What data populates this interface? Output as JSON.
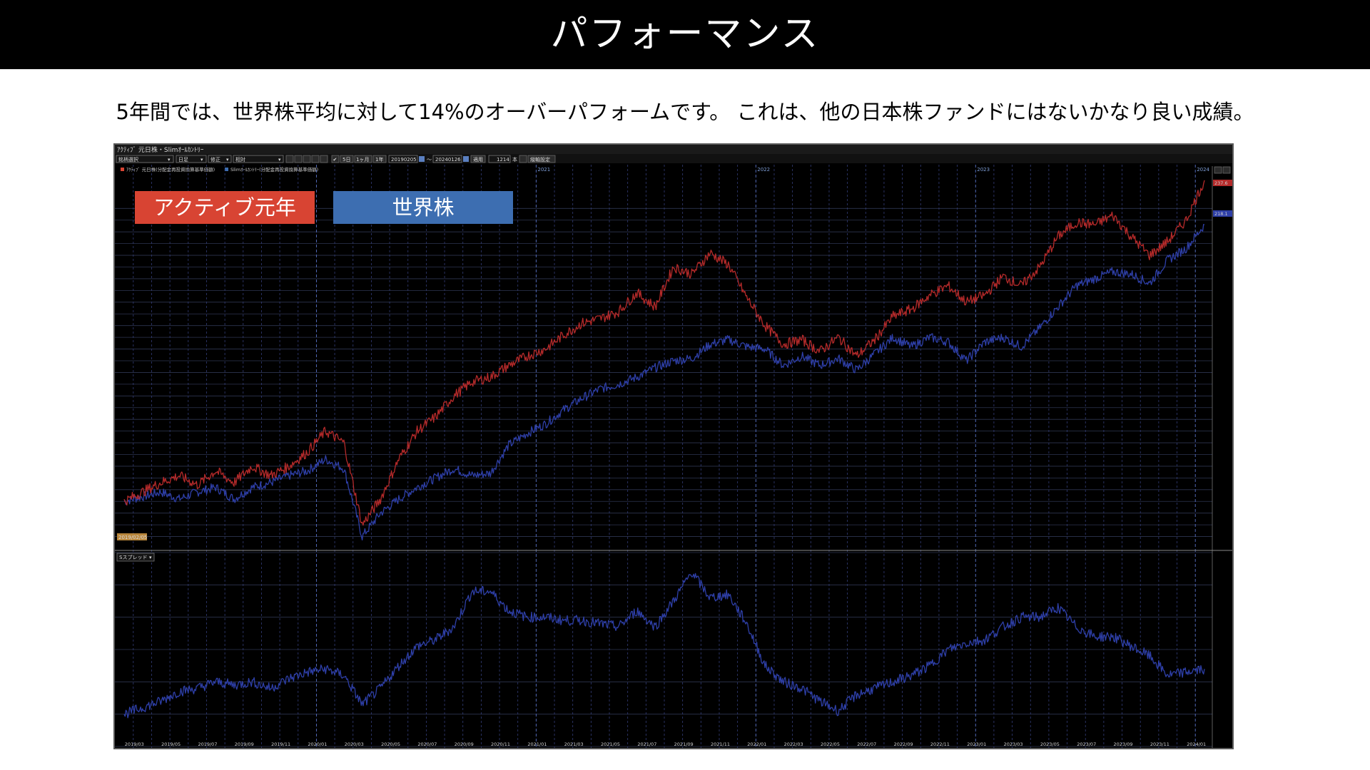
{
  "header": {
    "title": "パフォーマンス"
  },
  "subtitle": "5年間では、世界株平均に対して14%のオーバーパフォームです。 これは、他の日本株ファンドにはないかなり良い成績。",
  "labels": {
    "active": "アクティブ元年",
    "world": "世界株"
  },
  "colors": {
    "active": "#d84433",
    "world": "#3d6eb1",
    "series_red": "#b52a2a",
    "series_blue": "#2e3fa8"
  },
  "app": {
    "window_title": "ｱｸﾃｨﾌﾞ 元日株・Slimｵｰﾙｶﾝﾄﾘｰ",
    "toolbar": {
      "dropdown1": "銘柄選択",
      "dropdown2": "日足",
      "dropdown3": "修正",
      "dropdown4": "相対",
      "btn_5d": "5日",
      "btn_1m": "1ヶ月",
      "btn_1y": "1年",
      "date_from": "20190205",
      "tilde": "〜",
      "date_to": "20240126",
      "apply": "適用",
      "count": "1214",
      "count_unit": "本",
      "axis_settings": "縦軸設定"
    },
    "legend": {
      "item1": "ｱｸﾃｨﾌﾞ 元日株(分配金再投資換算基準価額)",
      "item2": "Slimｵｰﾙｶﾝﾄﾘｰ(分配金再投資換算基準価額)"
    },
    "start_date_badge": "2019/02/05",
    "indicator_label": "Sスプレッド",
    "last_value_red": "237.6",
    "last_value_blue": "218.1"
  },
  "chart_data": [
    {
      "type": "line",
      "title": "",
      "years_marked": [
        "2021",
        "2022",
        "2023",
        "2024"
      ],
      "x": [
        "2019/03",
        "2019/05",
        "2019/07",
        "2019/09",
        "2019/11",
        "2020/01",
        "2020/03",
        "2020/05",
        "2020/07",
        "2020/09",
        "2020/11",
        "2021/01",
        "2021/03",
        "2021/05",
        "2021/07",
        "2021/09",
        "2021/11",
        "2022/01",
        "2022/03",
        "2022/05",
        "2022/07",
        "2022/09",
        "2022/11",
        "2023/01",
        "2023/03",
        "2023/05",
        "2023/07",
        "2023/09",
        "2023/11",
        "2024/01"
      ],
      "ylim": [
        80,
        240
      ],
      "yticks": [
        85,
        90,
        95,
        100,
        105,
        110,
        115,
        120,
        125,
        130,
        135,
        140,
        145,
        150,
        155,
        160,
        165,
        170,
        175,
        180,
        185,
        190,
        195,
        200,
        205,
        210,
        215,
        220,
        225
      ],
      "series": [
        {
          "name": "ｱｸﾃｨﾌﾞ 元日株(分配金再投資換算基準価額)",
          "values": [
            {
              "x": "2019/02",
              "y": 100
            },
            {
              "x": "2019/03",
              "y": 104
            },
            {
              "x": "2019/04",
              "y": 108
            },
            {
              "x": "2019/05",
              "y": 111
            },
            {
              "x": "2019/06",
              "y": 107
            },
            {
              "x": "2019/07",
              "y": 113
            },
            {
              "x": "2019/08",
              "y": 108
            },
            {
              "x": "2019/09",
              "y": 115
            },
            {
              "x": "2019/10",
              "y": 111
            },
            {
              "x": "2019/11",
              "y": 115
            },
            {
              "x": "2019/12",
              "y": 121
            },
            {
              "x": "2020/01",
              "y": 130
            },
            {
              "x": "2020/02",
              "y": 125
            },
            {
              "x": "2020/03",
              "y": 90
            },
            {
              "x": "2020/04",
              "y": 101
            },
            {
              "x": "2020/05",
              "y": 118
            },
            {
              "x": "2020/06",
              "y": 130
            },
            {
              "x": "2020/07",
              "y": 136
            },
            {
              "x": "2020/08",
              "y": 145
            },
            {
              "x": "2020/09",
              "y": 151
            },
            {
              "x": "2020/10",
              "y": 153
            },
            {
              "x": "2020/11",
              "y": 158
            },
            {
              "x": "2020/12",
              "y": 162
            },
            {
              "x": "2021/01",
              "y": 165
            },
            {
              "x": "2021/02",
              "y": 171
            },
            {
              "x": "2021/03",
              "y": 176
            },
            {
              "x": "2021/04",
              "y": 178
            },
            {
              "x": "2021/05",
              "y": 181
            },
            {
              "x": "2021/06",
              "y": 189
            },
            {
              "x": "2021/07",
              "y": 183
            },
            {
              "x": "2021/08",
              "y": 200
            },
            {
              "x": "2021/09",
              "y": 197
            },
            {
              "x": "2021/10",
              "y": 206
            },
            {
              "x": "2021/11",
              "y": 201
            },
            {
              "x": "2021/12",
              "y": 187
            },
            {
              "x": "2022/01",
              "y": 175
            },
            {
              "x": "2022/02",
              "y": 167
            },
            {
              "x": "2022/03",
              "y": 169
            },
            {
              "x": "2022/04",
              "y": 164
            },
            {
              "x": "2022/05",
              "y": 170
            },
            {
              "x": "2022/06",
              "y": 162
            },
            {
              "x": "2022/07",
              "y": 169
            },
            {
              "x": "2022/08",
              "y": 179
            },
            {
              "x": "2022/09",
              "y": 182
            },
            {
              "x": "2022/10",
              "y": 188
            },
            {
              "x": "2022/11",
              "y": 192
            },
            {
              "x": "2022/12",
              "y": 185
            },
            {
              "x": "2023/01",
              "y": 188
            },
            {
              "x": "2023/02",
              "y": 196
            },
            {
              "x": "2023/03",
              "y": 192
            },
            {
              "x": "2023/04",
              "y": 200
            },
            {
              "x": "2023/05",
              "y": 213
            },
            {
              "x": "2023/06",
              "y": 219
            },
            {
              "x": "2023/07",
              "y": 218
            },
            {
              "x": "2023/08",
              "y": 222
            },
            {
              "x": "2023/09",
              "y": 213
            },
            {
              "x": "2023/10",
              "y": 205
            },
            {
              "x": "2023/11",
              "y": 211
            },
            {
              "x": "2023/12",
              "y": 220
            },
            {
              "x": "2024/01",
              "y": 237
            }
          ]
        },
        {
          "name": "Slimｵｰﾙｶﾝﾄﾘｰ(分配金再投資換算基準価額)",
          "values": [
            {
              "x": "2019/02",
              "y": 100
            },
            {
              "x": "2019/03",
              "y": 102
            },
            {
              "x": "2019/04",
              "y": 104
            },
            {
              "x": "2019/05",
              "y": 101
            },
            {
              "x": "2019/06",
              "y": 104
            },
            {
              "x": "2019/07",
              "y": 106
            },
            {
              "x": "2019/08",
              "y": 101
            },
            {
              "x": "2019/09",
              "y": 106
            },
            {
              "x": "2019/10",
              "y": 108
            },
            {
              "x": "2019/11",
              "y": 111
            },
            {
              "x": "2019/12",
              "y": 113
            },
            {
              "x": "2020/01",
              "y": 118
            },
            {
              "x": "2020/02",
              "y": 114
            },
            {
              "x": "2020/03",
              "y": 85
            },
            {
              "x": "2020/04",
              "y": 95
            },
            {
              "x": "2020/05",
              "y": 101
            },
            {
              "x": "2020/06",
              "y": 106
            },
            {
              "x": "2020/07",
              "y": 110
            },
            {
              "x": "2020/08",
              "y": 114
            },
            {
              "x": "2020/09",
              "y": 111
            },
            {
              "x": "2020/10",
              "y": 112
            },
            {
              "x": "2020/11",
              "y": 124
            },
            {
              "x": "2020/12",
              "y": 129
            },
            {
              "x": "2021/01",
              "y": 133
            },
            {
              "x": "2021/02",
              "y": 139
            },
            {
              "x": "2021/03",
              "y": 144
            },
            {
              "x": "2021/04",
              "y": 148
            },
            {
              "x": "2021/05",
              "y": 150
            },
            {
              "x": "2021/06",
              "y": 153
            },
            {
              "x": "2021/07",
              "y": 157
            },
            {
              "x": "2021/08",
              "y": 160
            },
            {
              "x": "2021/09",
              "y": 161
            },
            {
              "x": "2021/10",
              "y": 167
            },
            {
              "x": "2021/11",
              "y": 169
            },
            {
              "x": "2021/12",
              "y": 166
            },
            {
              "x": "2022/01",
              "y": 165
            },
            {
              "x": "2022/02",
              "y": 158
            },
            {
              "x": "2022/03",
              "y": 162
            },
            {
              "x": "2022/04",
              "y": 158
            },
            {
              "x": "2022/05",
              "y": 161
            },
            {
              "x": "2022/06",
              "y": 156
            },
            {
              "x": "2022/07",
              "y": 163
            },
            {
              "x": "2022/08",
              "y": 170
            },
            {
              "x": "2022/09",
              "y": 166
            },
            {
              "x": "2022/10",
              "y": 170
            },
            {
              "x": "2022/11",
              "y": 168
            },
            {
              "x": "2022/12",
              "y": 160
            },
            {
              "x": "2023/01",
              "y": 168
            },
            {
              "x": "2023/02",
              "y": 170
            },
            {
              "x": "2023/03",
              "y": 166
            },
            {
              "x": "2023/04",
              "y": 174
            },
            {
              "x": "2023/05",
              "y": 183
            },
            {
              "x": "2023/06",
              "y": 192
            },
            {
              "x": "2023/07",
              "y": 195
            },
            {
              "x": "2023/08",
              "y": 198
            },
            {
              "x": "2023/09",
              "y": 197
            },
            {
              "x": "2023/10",
              "y": 193
            },
            {
              "x": "2023/11",
              "y": 203
            },
            {
              "x": "2023/12",
              "y": 208
            },
            {
              "x": "2024/01",
              "y": 218
            }
          ]
        }
      ]
    },
    {
      "type": "line",
      "title": "Sスプレッド",
      "ylim": [
        -10,
        50
      ],
      "yticks": [
        -10,
        0,
        10,
        20,
        30,
        40,
        50
      ],
      "series": [
        {
          "name": "",
          "values": [
            {
              "x": "2019/02",
              "y": 0
            },
            {
              "x": "2019/03",
              "y": 2
            },
            {
              "x": "2019/04",
              "y": 4
            },
            {
              "x": "2019/05",
              "y": 7
            },
            {
              "x": "2019/06",
              "y": 8
            },
            {
              "x": "2019/07",
              "y": 10
            },
            {
              "x": "2019/08",
              "y": 9
            },
            {
              "x": "2019/09",
              "y": 10
            },
            {
              "x": "2019/10",
              "y": 8
            },
            {
              "x": "2019/11",
              "y": 11
            },
            {
              "x": "2019/12",
              "y": 13
            },
            {
              "x": "2020/01",
              "y": 14
            },
            {
              "x": "2020/02",
              "y": 12
            },
            {
              "x": "2020/03",
              "y": 3
            },
            {
              "x": "2020/04",
              "y": 8
            },
            {
              "x": "2020/05",
              "y": 15
            },
            {
              "x": "2020/06",
              "y": 21
            },
            {
              "x": "2020/07",
              "y": 23
            },
            {
              "x": "2020/08",
              "y": 27
            },
            {
              "x": "2020/09",
              "y": 38
            },
            {
              "x": "2020/10",
              "y": 38
            },
            {
              "x": "2020/11",
              "y": 32
            },
            {
              "x": "2020/12",
              "y": 30
            },
            {
              "x": "2021/01",
              "y": 30
            },
            {
              "x": "2021/02",
              "y": 29
            },
            {
              "x": "2021/03",
              "y": 29
            },
            {
              "x": "2021/04",
              "y": 28
            },
            {
              "x": "2021/05",
              "y": 27
            },
            {
              "x": "2021/06",
              "y": 32
            },
            {
              "x": "2021/07",
              "y": 27
            },
            {
              "x": "2021/08",
              "y": 35
            },
            {
              "x": "2021/09",
              "y": 44
            },
            {
              "x": "2021/10",
              "y": 36
            },
            {
              "x": "2021/11",
              "y": 37
            },
            {
              "x": "2021/12",
              "y": 28
            },
            {
              "x": "2022/01",
              "y": 15
            },
            {
              "x": "2022/02",
              "y": 10
            },
            {
              "x": "2022/03",
              "y": 8
            },
            {
              "x": "2022/04",
              "y": 4
            },
            {
              "x": "2022/05",
              "y": 1
            },
            {
              "x": "2022/06",
              "y": 6
            },
            {
              "x": "2022/07",
              "y": 8
            },
            {
              "x": "2022/08",
              "y": 10
            },
            {
              "x": "2022/09",
              "y": 12
            },
            {
              "x": "2022/10",
              "y": 15
            },
            {
              "x": "2022/11",
              "y": 20
            },
            {
              "x": "2022/12",
              "y": 22
            },
            {
              "x": "2023/01",
              "y": 23
            },
            {
              "x": "2023/02",
              "y": 27
            },
            {
              "x": "2023/03",
              "y": 30
            },
            {
              "x": "2023/04",
              "y": 30
            },
            {
              "x": "2023/05",
              "y": 33
            },
            {
              "x": "2023/06",
              "y": 27
            },
            {
              "x": "2023/07",
              "y": 24
            },
            {
              "x": "2023/08",
              "y": 24
            },
            {
              "x": "2023/09",
              "y": 21
            },
            {
              "x": "2023/10",
              "y": 18
            },
            {
              "x": "2023/11",
              "y": 12
            },
            {
              "x": "2023/12",
              "y": 13
            },
            {
              "x": "2024/01",
              "y": 14
            }
          ]
        }
      ]
    }
  ]
}
